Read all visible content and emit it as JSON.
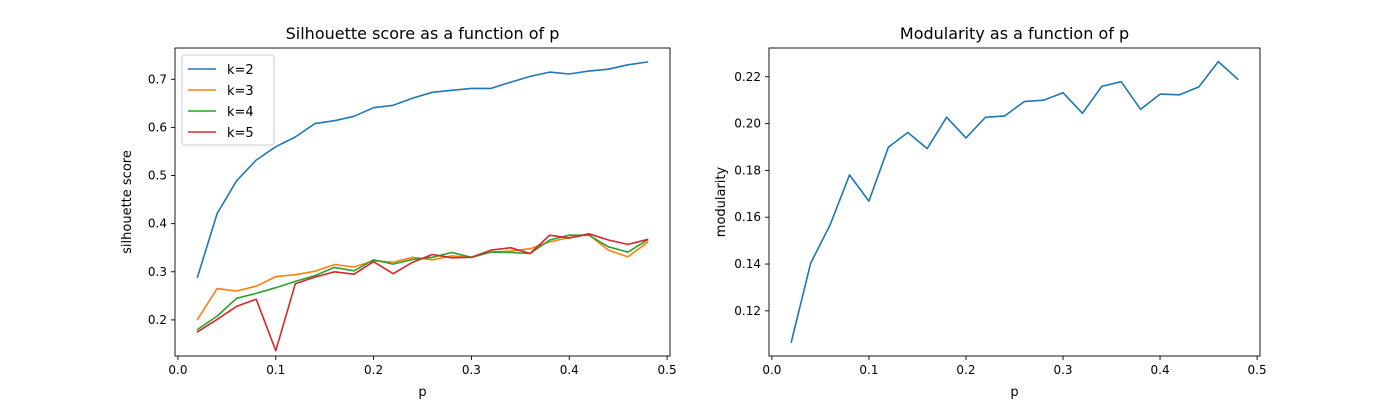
{
  "chart_data": [
    {
      "type": "line",
      "title": "Silhouette score as a function of p",
      "xlabel": "p",
      "ylabel": "silhouette score",
      "xlim": [
        -0.003,
        0.503
      ],
      "ylim": [
        0.125,
        0.765
      ],
      "xticks": [
        0.0,
        0.1,
        0.2,
        0.3,
        0.4,
        0.5
      ],
      "xtick_labels": [
        "0.0",
        "0.1",
        "0.2",
        "0.3",
        "0.4",
        "0.5"
      ],
      "yticks": [
        0.2,
        0.3,
        0.4,
        0.5,
        0.6,
        0.7
      ],
      "ytick_labels": [
        "0.2",
        "0.3",
        "0.4",
        "0.5",
        "0.6",
        "0.7"
      ],
      "grid": false,
      "legend": "upper-left",
      "x": [
        0.02,
        0.04,
        0.06,
        0.08,
        0.1,
        0.12,
        0.14,
        0.16,
        0.18,
        0.2,
        0.22,
        0.24,
        0.26,
        0.28,
        0.3,
        0.32,
        0.34,
        0.36,
        0.38,
        0.4,
        0.42,
        0.44,
        0.46,
        0.48
      ],
      "series": [
        {
          "name": "k=2",
          "color": "#1f77b4",
          "values": [
            0.289,
            0.421,
            0.489,
            0.532,
            0.56,
            0.58,
            0.608,
            0.614,
            0.623,
            0.641,
            0.646,
            0.661,
            0.673,
            0.677,
            0.681,
            0.681,
            0.694,
            0.706,
            0.715,
            0.711,
            0.717,
            0.721,
            0.73,
            0.736
          ]
        },
        {
          "name": "k=3",
          "color": "#ff7f0e",
          "values": [
            0.201,
            0.265,
            0.26,
            0.27,
            0.29,
            0.294,
            0.301,
            0.315,
            0.31,
            0.323,
            0.32,
            0.33,
            0.325,
            0.333,
            0.33,
            0.341,
            0.343,
            0.348,
            0.362,
            0.371,
            0.377,
            0.345,
            0.331,
            0.361
          ]
        },
        {
          "name": "k=4",
          "color": "#2ca02c",
          "values": [
            0.18,
            0.208,
            0.245,
            0.255,
            0.267,
            0.28,
            0.292,
            0.309,
            0.302,
            0.325,
            0.316,
            0.326,
            0.33,
            0.34,
            0.33,
            0.341,
            0.34,
            0.338,
            0.366,
            0.376,
            0.376,
            0.352,
            0.341,
            0.366
          ]
        },
        {
          "name": "k=5",
          "color": "#d62728",
          "values": [
            0.175,
            0.201,
            0.228,
            0.243,
            0.136,
            0.275,
            0.289,
            0.3,
            0.295,
            0.321,
            0.296,
            0.32,
            0.336,
            0.329,
            0.33,
            0.345,
            0.35,
            0.338,
            0.376,
            0.37,
            0.379,
            0.366,
            0.357,
            0.367
          ]
        }
      ]
    },
    {
      "type": "line",
      "title": "Modularity as a function of p",
      "xlabel": "p",
      "ylabel": "modularity",
      "xlim": [
        -0.003,
        0.503
      ],
      "ylim": [
        0.1007,
        0.2323
      ],
      "xticks": [
        0.0,
        0.1,
        0.2,
        0.3,
        0.4,
        0.5
      ],
      "xtick_labels": [
        "0.0",
        "0.1",
        "0.2",
        "0.3",
        "0.4",
        "0.5"
      ],
      "yticks": [
        0.12,
        0.14,
        0.16,
        0.18,
        0.2,
        0.22
      ],
      "ytick_labels": [
        "0.12",
        "0.14",
        "0.16",
        "0.18",
        "0.20",
        "0.22"
      ],
      "grid": false,
      "x": [
        0.02,
        0.04,
        0.06,
        0.08,
        0.1,
        0.12,
        0.14,
        0.16,
        0.18,
        0.2,
        0.22,
        0.24,
        0.26,
        0.28,
        0.3,
        0.32,
        0.34,
        0.36,
        0.38,
        0.4,
        0.42,
        0.44,
        0.46,
        0.48
      ],
      "series": [
        {
          "color": "#1f77b4",
          "values": [
            0.1067,
            0.1404,
            0.1567,
            0.1781,
            0.1669,
            0.1899,
            0.1962,
            0.1893,
            0.2027,
            0.1939,
            0.2027,
            0.2033,
            0.2094,
            0.21,
            0.2132,
            0.2044,
            0.2159,
            0.2179,
            0.2061,
            0.2126,
            0.2123,
            0.2157,
            0.2265,
            0.219
          ]
        }
      ]
    }
  ]
}
